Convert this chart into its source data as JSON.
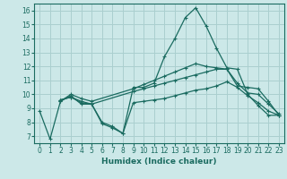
{
  "title": "",
  "xlabel": "Humidex (Indice chaleur)",
  "bg_color": "#cce8e8",
  "grid_color": "#aacfcf",
  "line_color": "#1a6b60",
  "xlim": [
    -0.5,
    23.5
  ],
  "ylim": [
    6.5,
    16.5
  ],
  "xticks": [
    0,
    1,
    2,
    3,
    4,
    5,
    6,
    7,
    8,
    9,
    10,
    11,
    12,
    13,
    14,
    15,
    16,
    17,
    18,
    19,
    20,
    21,
    22,
    23
  ],
  "yticks": [
    7,
    8,
    9,
    10,
    11,
    12,
    13,
    14,
    15,
    16
  ],
  "line1": {
    "x": [
      0,
      1,
      2,
      3,
      4,
      5,
      6,
      7,
      8,
      9,
      10,
      11,
      12,
      13,
      14,
      15,
      16,
      17,
      18,
      19,
      20,
      21,
      22,
      23
    ],
    "y": [
      8.8,
      6.8,
      9.5,
      9.9,
      9.3,
      9.3,
      7.9,
      7.6,
      7.2,
      10.5,
      10.5,
      10.8,
      12.7,
      14.0,
      15.5,
      16.2,
      14.9,
      13.3,
      11.9,
      11.8,
      10.0,
      9.2,
      8.5,
      8.5
    ]
  },
  "line2": {
    "x": [
      2,
      3,
      4,
      5,
      9,
      10,
      11,
      12,
      13,
      14,
      15,
      16,
      17,
      18,
      19,
      20,
      21,
      22,
      23
    ],
    "y": [
      9.5,
      10.0,
      9.7,
      9.5,
      10.4,
      10.7,
      11.0,
      11.3,
      11.6,
      11.9,
      12.2,
      12.0,
      11.9,
      11.8,
      10.8,
      10.1,
      10.0,
      9.3,
      8.6
    ]
  },
  "line3": {
    "x": [
      2,
      3,
      4,
      5,
      9,
      10,
      11,
      12,
      13,
      14,
      15,
      16,
      17,
      18,
      19,
      20,
      21,
      22,
      23
    ],
    "y": [
      9.6,
      9.8,
      9.5,
      9.3,
      10.2,
      10.4,
      10.6,
      10.8,
      11.0,
      11.2,
      11.4,
      11.6,
      11.8,
      11.8,
      10.6,
      10.5,
      10.4,
      9.5,
      8.5
    ]
  },
  "line4": {
    "x": [
      2,
      3,
      4,
      5,
      6,
      7,
      8,
      9,
      10,
      11,
      12,
      13,
      14,
      15,
      16,
      17,
      18,
      19,
      20,
      21,
      22,
      23
    ],
    "y": [
      9.6,
      9.8,
      9.4,
      9.3,
      8.0,
      7.7,
      7.2,
      9.4,
      9.5,
      9.6,
      9.7,
      9.9,
      10.1,
      10.3,
      10.4,
      10.6,
      10.9,
      10.5,
      9.9,
      9.4,
      8.8,
      8.5
    ]
  }
}
